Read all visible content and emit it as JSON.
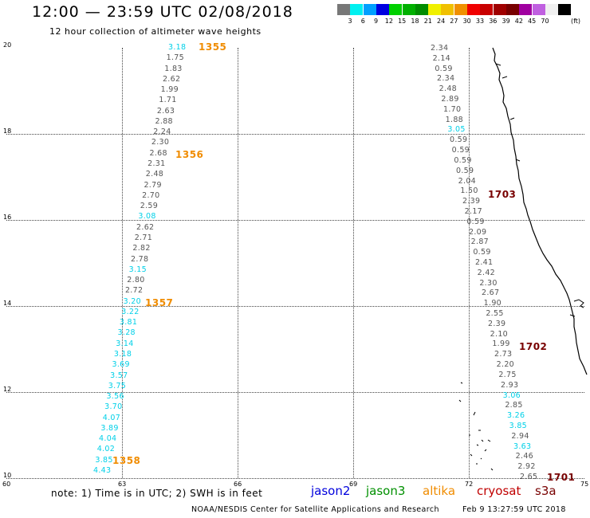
{
  "title": "12:00 — 23:59 UTC 02/08/2018",
  "subtitle": "12 hour collection of altimeter wave heights",
  "legend": {
    "unit": "(ft)",
    "colors": [
      "#777777",
      "#00f0f0",
      "#00a0ff",
      "#0000e0",
      "#00d000",
      "#00b000",
      "#008c00",
      "#f0f000",
      "#f0c000",
      "#f09000",
      "#f00000",
      "#c80000",
      "#a00000",
      "#780000",
      "#a000a0",
      "#c060e0",
      "#f0f0f0",
      "#000000"
    ],
    "labels": [
      "3",
      "6",
      "9",
      "12",
      "15",
      "18",
      "21",
      "24",
      "27",
      "30",
      "33",
      "36",
      "39",
      "42",
      "45",
      "70"
    ]
  },
  "axes": {
    "x_ticks": [
      "60",
      "63",
      "66",
      "69",
      "72",
      "75"
    ],
    "y_ticks": [
      "20",
      "18",
      "16",
      "14",
      "12",
      "10"
    ]
  },
  "tracks": {
    "west": {
      "values": [
        "3.18",
        "1.75",
        "1.83",
        "2.62",
        "1.99",
        "1.71",
        "2.63",
        "2.88",
        "2.24",
        "2.30",
        "2.68",
        "2.31",
        "2.48",
        "2.79",
        "2.70",
        "2.59",
        "3.08",
        "2.62",
        "2.71",
        "2.82",
        "2.78",
        "3.15",
        "2.80",
        "2.72",
        "3.20",
        "3.22",
        "3.81",
        "3.28",
        "3.14",
        "3.18",
        "3.69",
        "3.57",
        "3.75",
        "3.56",
        "3.70",
        "4.07",
        "3.89",
        "4.04",
        "4.02",
        "3.85",
        "4.43"
      ]
    },
    "east": {
      "values": [
        "2.34",
        "2.14",
        "0.59",
        "2.34",
        "2.48",
        "2.89",
        "1.70",
        "1.88",
        "3.05",
        "0.59",
        "0.59",
        "0.59",
        "0.59",
        "2.04",
        "1.50",
        "2.39",
        "2.17",
        "0.59",
        "2.09",
        "2.87",
        "0.59",
        "2.41",
        "2.42",
        "2.30",
        "2.67",
        "1.90",
        "2.55",
        "2.39",
        "2.10",
        "1.99",
        "2.73",
        "2.20",
        "2.75",
        "2.93",
        "3.06",
        "2.85",
        "3.26",
        "3.85",
        "2.94",
        "3.63",
        "2.46",
        "2.92",
        "2.65"
      ]
    }
  },
  "pass_labels": [
    {
      "text": "1355",
      "color": "#f08c00"
    },
    {
      "text": "1356",
      "color": "#f08c00"
    },
    {
      "text": "1357",
      "color": "#f08c00"
    },
    {
      "text": "1358",
      "color": "#f08c00"
    },
    {
      "text": "1703",
      "color": "#780000"
    },
    {
      "text": "1702",
      "color": "#780000"
    },
    {
      "text": "1701",
      "color": "#780000"
    }
  ],
  "note": "note:  1) Time is in UTC;  2) SWH is in feet",
  "satellites": [
    {
      "name": "jason2",
      "color": "#0000dd"
    },
    {
      "name": "jason3",
      "color": "#009000"
    },
    {
      "name": "altika",
      "color": "#f08c00"
    },
    {
      "name": "cryosat",
      "color": "#c00000"
    },
    {
      "name": "s3a",
      "color": "#780000"
    }
  ],
  "footer": "NOAA/NESDIS Center for Satellite Applications and Research",
  "timestamp": "Feb  9 13:27:59 UTC 2018"
}
